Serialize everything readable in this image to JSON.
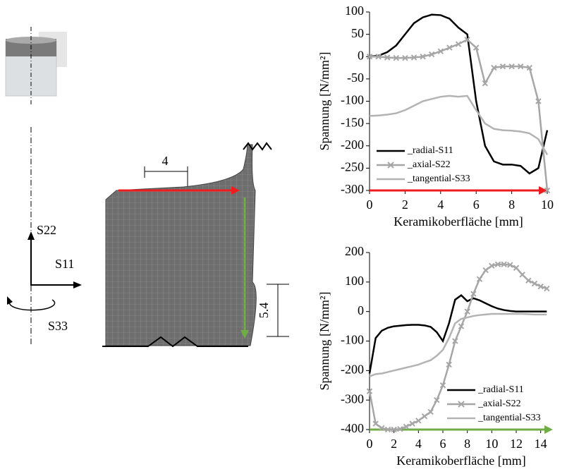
{
  "chart_data": [
    {
      "type": "line",
      "xlabel": "Keramikoberfläche [mm]",
      "ylabel": "Spannung [N/mm²]",
      "x": [
        0,
        0.5,
        1,
        1.5,
        2,
        2.5,
        3,
        3.5,
        4,
        4.5,
        5,
        5.5,
        6,
        6.5,
        7,
        7.5,
        8,
        8.5,
        9,
        9.5,
        10
      ],
      "xlim": [
        0,
        10
      ],
      "xticks": [
        0,
        2,
        4,
        6,
        8,
        10
      ],
      "ylim": [
        -300,
        100
      ],
      "yticks": [
        -300,
        -250,
        -200,
        -150,
        -100,
        -50,
        0,
        50,
        100
      ],
      "legend": "lower left",
      "axis_arrow_color": "#ee1c1c",
      "series": [
        {
          "name": "_radial-S11",
          "color": "#000000",
          "marker": "none",
          "values": [
            0,
            2,
            10,
            25,
            50,
            75,
            88,
            94,
            93,
            85,
            65,
            50,
            -100,
            -200,
            -235,
            -242,
            -242,
            -245,
            -262,
            -250,
            -165
          ]
        },
        {
          "name": "_axial-S22",
          "color": "#a6a6a6",
          "marker": "x",
          "values": [
            0,
            0,
            -2,
            -3,
            -3,
            -2,
            0,
            5,
            12,
            20,
            28,
            38,
            20,
            -60,
            -25,
            -22,
            -22,
            -22,
            -25,
            -100,
            -300
          ]
        },
        {
          "name": "_tangential-S33",
          "color": "#b3b3b3",
          "marker": "none",
          "values": [
            -133,
            -132,
            -130,
            -127,
            -120,
            -110,
            -100,
            -95,
            -90,
            -88,
            -90,
            -88,
            -120,
            -150,
            -162,
            -165,
            -166,
            -168,
            -172,
            -185,
            -220
          ]
        }
      ]
    },
    {
      "type": "line",
      "xlabel": "Keramikoberfläche [mm]",
      "ylabel": "Spannung [N/mm²]",
      "x": [
        0,
        0.5,
        1,
        1.5,
        2,
        2.5,
        3,
        3.5,
        4,
        4.5,
        5,
        5.5,
        6,
        6.5,
        7,
        7.5,
        8,
        8.5,
        9,
        9.5,
        10,
        10.5,
        11,
        11.5,
        12,
        12.5,
        13,
        13.5,
        14,
        14.5
      ],
      "xlim": [
        0,
        15
      ],
      "xticks": [
        0,
        2,
        4,
        6,
        8,
        10,
        12,
        14
      ],
      "ylim": [
        -400,
        200
      ],
      "yticks": [
        -400,
        -300,
        -200,
        -100,
        0,
        100,
        200
      ],
      "legend": "lower right",
      "axis_arrow_color": "#70ad47",
      "series": [
        {
          "name": "_radial-S11",
          "color": "#000000",
          "marker": "none",
          "values": [
            -210,
            -90,
            -65,
            -55,
            -50,
            -48,
            -46,
            -45,
            -45,
            -47,
            -52,
            -70,
            -100,
            -40,
            40,
            55,
            35,
            45,
            38,
            28,
            18,
            10,
            5,
            2,
            0,
            0,
            0,
            0,
            0,
            0
          ]
        },
        {
          "name": "_axial-S22",
          "color": "#a6a6a6",
          "marker": "x",
          "values": [
            -270,
            -380,
            -395,
            -400,
            -400,
            -398,
            -390,
            -380,
            -370,
            -355,
            -340,
            -300,
            -250,
            -180,
            -100,
            -50,
            0,
            60,
            110,
            140,
            155,
            160,
            160,
            158,
            148,
            125,
            105,
            95,
            85,
            78
          ]
        },
        {
          "name": "_tangential-S33",
          "color": "#b3b3b3",
          "marker": "none",
          "values": [
            -220,
            -212,
            -210,
            -205,
            -200,
            -195,
            -190,
            -185,
            -180,
            -172,
            -165,
            -150,
            -130,
            -90,
            -40,
            -25,
            -20,
            -15,
            -12,
            -10,
            -8,
            -8,
            -8,
            -8,
            -8,
            -8,
            -9,
            -10,
            -10,
            -10
          ]
        }
      ]
    }
  ],
  "diagram": {
    "width_label": "4",
    "height_label": "5.4",
    "s22": "S22",
    "s11": "S11",
    "s33": "S33"
  }
}
